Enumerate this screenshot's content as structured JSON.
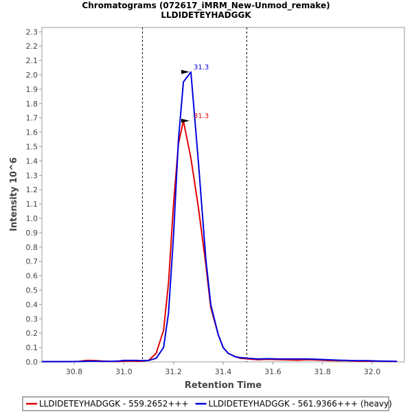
{
  "chart_data": {
    "type": "line",
    "title": "Chromatograms (072617_iMRM_New-Unmod_remake)",
    "subtitle": "LLDIDETEYHADGGK",
    "xlabel": "Retention Time",
    "ylabel": "Intensity 10^6",
    "xlim": [
      30.67,
      32.13
    ],
    "ylim": [
      0,
      2.33
    ],
    "x_ticks": [
      "30.8",
      "31.0",
      "31.2",
      "31.4",
      "31.6",
      "31.8",
      "32.0"
    ],
    "x_tick_values": [
      30.8,
      31.0,
      31.2,
      31.4,
      31.6,
      31.8,
      32.0
    ],
    "y_ticks": [
      "0.0",
      "0.1",
      "0.2",
      "0.3",
      "0.4",
      "0.5",
      "0.6",
      "0.7",
      "0.8",
      "0.9",
      "1.0",
      "1.1",
      "1.2",
      "1.3",
      "1.4",
      "1.5",
      "1.6",
      "1.7",
      "1.8",
      "1.9",
      "2.0",
      "2.1",
      "2.2",
      "2.3"
    ],
    "y_tick_values": [
      0.0,
      0.1,
      0.2,
      0.3,
      0.4,
      0.5,
      0.6,
      0.7,
      0.8,
      0.9,
      1.0,
      1.1,
      1.2,
      1.3,
      1.4,
      1.5,
      1.6,
      1.7,
      1.8,
      1.9,
      2.0,
      2.1,
      2.2,
      2.3
    ],
    "integration_bounds": [
      31.075,
      31.495
    ],
    "x": [
      30.67,
      30.7,
      30.74,
      30.78,
      30.82,
      30.85,
      30.87,
      30.89,
      30.91,
      30.95,
      30.98,
      31.0,
      31.02,
      31.05,
      31.07,
      31.1,
      31.13,
      31.16,
      31.18,
      31.2,
      31.22,
      31.24,
      31.27,
      31.3,
      31.33,
      31.35,
      31.38,
      31.4,
      31.42,
      31.45,
      31.47,
      31.5,
      31.54,
      31.58,
      31.62,
      31.66,
      31.7,
      31.74,
      31.78,
      31.82,
      31.86,
      31.9,
      31.94,
      31.98,
      32.02,
      32.06,
      32.1
    ],
    "series": [
      {
        "name": "LLDIDETEYHADGGK - 559.2652+++",
        "color": "#e00000",
        "values": [
          0.002,
          0.002,
          0.002,
          0.002,
          0.004,
          0.01,
          0.01,
          0.008,
          0.006,
          0.004,
          0.003,
          0.005,
          0.006,
          0.005,
          0.005,
          0.01,
          0.06,
          0.22,
          0.55,
          1.1,
          1.52,
          1.68,
          1.42,
          1.08,
          0.68,
          0.38,
          0.19,
          0.1,
          0.06,
          0.035,
          0.025,
          0.02,
          0.015,
          0.018,
          0.016,
          0.014,
          0.012,
          0.015,
          0.013,
          0.01,
          0.008,
          0.008,
          0.005,
          0.005,
          0.005,
          0.004,
          0.003
        ]
      },
      {
        "name": "LLDIDETEYHADGGK - 561.9366+++ (heavy)",
        "color": "#0000e0",
        "values": [
          0.002,
          0.002,
          0.002,
          0.002,
          0.003,
          0.005,
          0.005,
          0.005,
          0.004,
          0.004,
          0.006,
          0.01,
          0.01,
          0.01,
          0.008,
          0.01,
          0.025,
          0.1,
          0.34,
          0.88,
          1.55,
          1.95,
          2.02,
          1.4,
          0.72,
          0.4,
          0.19,
          0.1,
          0.06,
          0.035,
          0.03,
          0.025,
          0.02,
          0.022,
          0.02,
          0.02,
          0.02,
          0.02,
          0.018,
          0.015,
          0.012,
          0.01,
          0.008,
          0.008,
          0.006,
          0.005,
          0.004
        ]
      }
    ],
    "annotations": [
      {
        "text": "31.3",
        "x": 31.27,
        "y": 2.02,
        "color": "#0000e0"
      },
      {
        "text": "31.3",
        "x": 31.27,
        "y": 1.68,
        "color": "#e00000"
      }
    ],
    "legend": [
      {
        "label": "LLDIDETEYHADGGK - 559.2652+++",
        "color": "#e00000"
      },
      {
        "label": "LLDIDETEYHADGGK - 561.9366+++ (heavy)",
        "color": "#0000e0"
      }
    ],
    "legend_position": "bottom"
  }
}
